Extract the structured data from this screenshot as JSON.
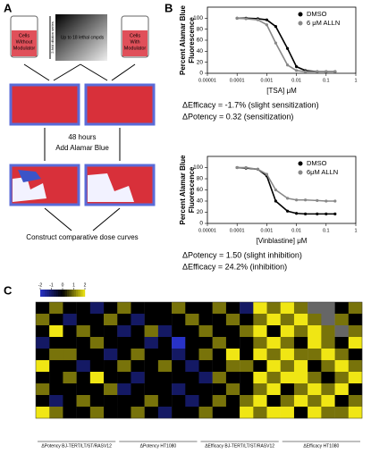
{
  "panel_labels": [
    "A",
    "B",
    "C"
  ],
  "panel_a": {
    "flask_left": [
      "Cells",
      "Without",
      "Modulator"
    ],
    "flask_right": [
      "Cells",
      "With",
      "Modulator"
    ],
    "compounds": "Up to 18 lethal cmpds",
    "dilution": "2-fold dilution series",
    "step1": "48 hours",
    "step2": "Add Alamar Blue",
    "step3": "Construct comparative dose curves"
  },
  "chart_data": [
    {
      "type": "line",
      "ylabel": [
        "Percent Alamar Blue",
        "Fluorescence"
      ],
      "xlabel": "[TSA] μM",
      "xlog": true,
      "xlim": [
        1e-05,
        1
      ],
      "xticks": [
        1e-05,
        0.0001,
        0.001,
        0.01,
        0.1,
        1
      ],
      "ylim": [
        0,
        120
      ],
      "yticks": [
        0,
        20,
        40,
        60,
        80,
        100
      ],
      "x": [
        0.0001,
        0.0002,
        0.0005,
        0.001,
        0.002,
        0.005,
        0.01,
        0.02,
        0.05,
        0.1,
        0.2
      ],
      "series": [
        {
          "name": "DMSO",
          "color": "#000000",
          "values": [
            100,
            100,
            99,
            97,
            85,
            45,
            12,
            5,
            3,
            3,
            3
          ]
        },
        {
          "name": "6 μM ALLN",
          "color": "#888888",
          "values": [
            100,
            99,
            97,
            88,
            55,
            15,
            5,
            3,
            3,
            3,
            3
          ]
        }
      ],
      "annotations": [
        {
          "text": "ΔEfficacy = -1.7% (slight sensitization)",
          "color": "#3a4fb0"
        },
        {
          "text": "ΔPotency = 0.32 (sensitization)",
          "color": "#d9302a"
        }
      ]
    },
    {
      "type": "line",
      "ylabel": [
        "Percent Alamar Blue",
        "Fluorescence"
      ],
      "xlabel": "[Vinblastine] μM",
      "xlog": true,
      "xlim": [
        1e-05,
        1
      ],
      "xticks": [
        1e-05,
        0.0001,
        0.001,
        0.01,
        0.1,
        1
      ],
      "ylim": [
        0,
        120
      ],
      "yticks": [
        0,
        20,
        40,
        60,
        80,
        100
      ],
      "x": [
        0.0001,
        0.0002,
        0.0005,
        0.001,
        0.002,
        0.005,
        0.01,
        0.02,
        0.05,
        0.1,
        0.2
      ],
      "series": [
        {
          "name": "DMSO",
          "color": "#000000",
          "values": [
            100,
            99,
            97,
            85,
            40,
            22,
            18,
            17,
            17,
            17,
            17
          ]
        },
        {
          "name": "6μM ALLN",
          "color": "#888888",
          "values": [
            100,
            100,
            97,
            88,
            60,
            45,
            42,
            42,
            41,
            40,
            40
          ]
        }
      ],
      "annotations": [
        {
          "text": "ΔPotency = 1.50 (slight inhibition)",
          "color": "#d9302a"
        },
        {
          "text": "ΔEfficacy = 24.2% (inhibition)",
          "color": "#3a4fb0"
        }
      ]
    },
    {
      "type": "heatmap",
      "clim": [
        -2,
        2
      ],
      "cticks": [
        -2,
        -1,
        0,
        1,
        2
      ],
      "groups": [
        "ΔPotency BJ-TERT/LT/ST/RASV12",
        "ΔPotency HT1080",
        "ΔEfficacy BJ-TERT/LT/ST/RASV12",
        "ΔEfficacy HT1080"
      ],
      "values": [
        [
          0,
          1,
          0,
          0,
          -1,
          0,
          1,
          0,
          0,
          0,
          1,
          0,
          0,
          1,
          0,
          -1,
          2,
          1,
          2,
          1,
          null,
          null,
          0,
          1
        ],
        [
          1,
          0,
          -1,
          0,
          0,
          1,
          0,
          -1,
          0,
          0,
          0,
          1,
          0,
          0,
          1,
          0,
          1,
          2,
          1,
          2,
          1,
          null,
          1,
          0
        ],
        [
          0,
          2,
          0,
          1,
          0,
          0,
          -1,
          0,
          1,
          -1,
          0,
          0,
          1,
          0,
          0,
          1,
          2,
          0,
          2,
          1,
          2,
          1,
          null,
          1
        ],
        [
          -1,
          0,
          0,
          0,
          1,
          0,
          0,
          0,
          -1,
          0,
          -2,
          0,
          0,
          1,
          0,
          0,
          1,
          2,
          1,
          0,
          2,
          1,
          0,
          2
        ],
        [
          0,
          1,
          1,
          0,
          0,
          -1,
          0,
          1,
          0,
          0,
          -1,
          0,
          1,
          0,
          2,
          0,
          2,
          1,
          2,
          1,
          1,
          2,
          1,
          0
        ],
        [
          2,
          0,
          0,
          -1,
          0,
          0,
          1,
          0,
          0,
          1,
          0,
          -1,
          0,
          0,
          1,
          1,
          0,
          2,
          1,
          2,
          0,
          1,
          2,
          1
        ],
        [
          0,
          0,
          1,
          0,
          2,
          0,
          0,
          -1,
          0,
          0,
          0,
          0,
          -1,
          1,
          0,
          0,
          2,
          1,
          2,
          2,
          1,
          0,
          1,
          2
        ],
        [
          1,
          0,
          0,
          0,
          0,
          1,
          -1,
          0,
          0,
          0,
          -1,
          0,
          0,
          0,
          1,
          0,
          1,
          2,
          0,
          1,
          2,
          1,
          2,
          0
        ],
        [
          0,
          -1,
          0,
          1,
          0,
          0,
          0,
          0,
          1,
          0,
          0,
          -1,
          0,
          1,
          0,
          1,
          2,
          0,
          1,
          2,
          1,
          2,
          0,
          1
        ],
        [
          2,
          1,
          0,
          0,
          1,
          0,
          0,
          1,
          0,
          -1,
          0,
          0,
          1,
          0,
          0,
          2,
          1,
          2,
          2,
          0,
          2,
          1,
          1,
          2
        ]
      ]
    }
  ]
}
